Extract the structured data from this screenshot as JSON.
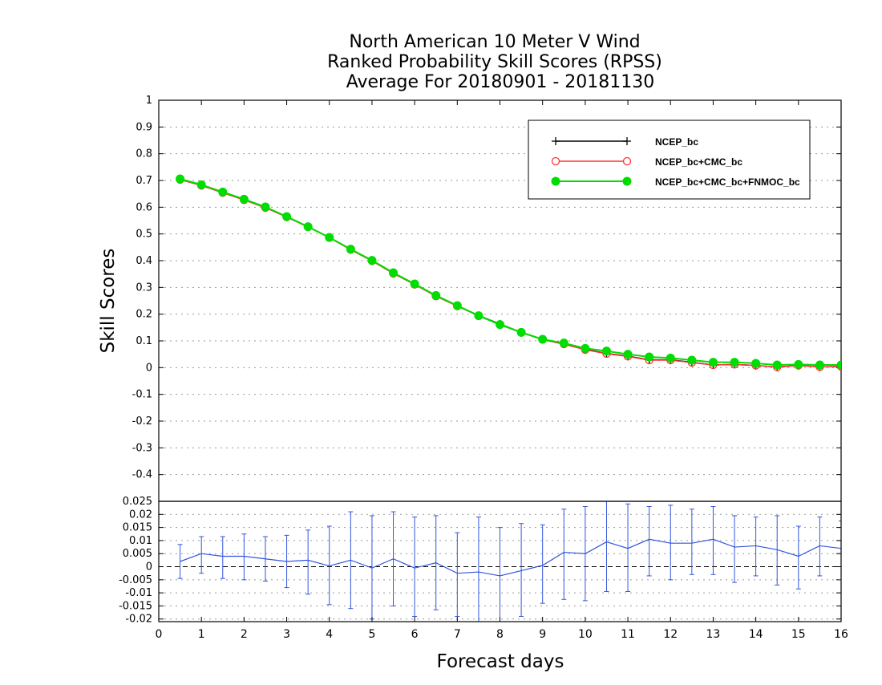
{
  "chart_data": [
    {
      "type": "line",
      "title": [
        "North American 10 Meter V Wind",
        "Ranked Probability Skill Scores (RPSS)",
        "Average For 20180901 - 20181130"
      ],
      "xlabel": "Forecast days",
      "ylabel": "Skill Scores",
      "xlim": [
        0,
        16
      ],
      "ylim": [
        -0.5,
        1.0
      ],
      "x_ticks": [
        "0",
        "1",
        "2",
        "3",
        "4",
        "5",
        "6",
        "7",
        "8",
        "9",
        "10",
        "11",
        "12",
        "13",
        "14",
        "15",
        "16"
      ],
      "y_ticks": [
        "-0.4",
        "-0.3",
        "-0.2",
        "-0.1",
        "0",
        "0.1",
        "0.2",
        "0.3",
        "0.4",
        "0.5",
        "0.6",
        "0.7",
        "0.8",
        "0.9",
        "1"
      ],
      "grid": true,
      "legend_position": "top-right",
      "x": [
        0.5,
        1,
        1.5,
        2,
        2.5,
        3,
        3.5,
        4,
        4.5,
        5,
        5.5,
        6,
        6.5,
        7,
        7.5,
        8,
        8.5,
        9,
        9.5,
        10,
        10.5,
        11,
        11.5,
        12,
        12.5,
        13,
        13.5,
        14,
        14.5,
        15,
        15.5,
        16
      ],
      "series": [
        {
          "name": "NCEP_bc",
          "color": "#000000",
          "marker": "plus",
          "values": [
            0.705,
            0.682,
            0.655,
            0.628,
            0.6,
            0.565,
            0.527,
            0.487,
            0.442,
            0.4,
            0.353,
            0.313,
            0.268,
            0.232,
            0.195,
            0.163,
            0.132,
            0.105,
            0.088,
            0.068,
            0.053,
            0.043,
            0.029,
            0.029,
            0.02,
            0.01,
            0.012,
            0.008,
            0.002,
            0.008,
            0.003,
            0.004
          ]
        },
        {
          "name": "NCEP_bc+CMC_bc",
          "color": "#ff3333",
          "marker": "open-circle",
          "values": [
            0.703,
            0.681,
            0.654,
            0.627,
            0.598,
            0.563,
            0.526,
            0.486,
            0.441,
            0.399,
            0.352,
            0.311,
            0.267,
            0.23,
            0.194,
            0.161,
            0.131,
            0.105,
            0.088,
            0.067,
            0.052,
            0.042,
            0.028,
            0.028,
            0.019,
            0.01,
            0.012,
            0.008,
            0.002,
            0.008,
            0.003,
            0.004
          ]
        },
        {
          "name": "NCEP_bc+CMC_bc+FNMOC_bc",
          "color": "#00dd00",
          "marker": "filled-circle",
          "values": [
            0.706,
            0.684,
            0.657,
            0.63,
            0.601,
            0.565,
            0.527,
            0.487,
            0.443,
            0.401,
            0.355,
            0.313,
            0.27,
            0.232,
            0.194,
            0.161,
            0.132,
            0.106,
            0.092,
            0.072,
            0.062,
            0.05,
            0.04,
            0.036,
            0.028,
            0.02,
            0.02,
            0.016,
            0.01,
            0.012,
            0.01,
            0.01
          ]
        }
      ]
    },
    {
      "type": "line",
      "xlim": [
        0,
        16
      ],
      "ylim": [
        -0.021,
        0.025
      ],
      "y_ticks": [
        "-0.02",
        "-0.015",
        "-0.01",
        "-0.005",
        "0",
        "0.005",
        "0.01",
        "0.015",
        "0.02",
        "0.025"
      ],
      "grid": true,
      "x": [
        0.5,
        1,
        1.5,
        2,
        2.5,
        3,
        3.5,
        4,
        4.5,
        5,
        5.5,
        6,
        6.5,
        7,
        7.5,
        8,
        8.5,
        9,
        9.5,
        10,
        10.5,
        11,
        11.5,
        12,
        12.5,
        13,
        13.5,
        14,
        14.5,
        15,
        15.5,
        16
      ],
      "series": [
        {
          "color": "#3355dd",
          "values": [
            0.002,
            0.005,
            0.004,
            0.004,
            0.003,
            0.002,
            0.0025,
            0.0003,
            0.0025,
            -0.0005,
            0.003,
            -0.0005,
            0.0015,
            -0.0025,
            -0.002,
            -0.0035,
            -0.0015,
            0.0005,
            0.0055,
            0.005,
            0.0095,
            0.007,
            0.0105,
            0.009,
            0.009,
            0.0105,
            0.0075,
            0.008,
            0.0065,
            0.004,
            0.008,
            0.007
          ],
          "error_low": [
            -0.0045,
            -0.0025,
            -0.0045,
            -0.005,
            -0.0055,
            -0.008,
            -0.0105,
            -0.0145,
            -0.016,
            -0.02,
            -0.015,
            -0.019,
            -0.0165,
            -0.019,
            -0.021,
            -0.021,
            -0.019,
            -0.014,
            -0.0125,
            -0.013,
            -0.0095,
            -0.0095,
            -0.0035,
            -0.005,
            -0.003,
            -0.003,
            -0.006,
            -0.0035,
            -0.007,
            -0.0085,
            -0.0035,
            -0.005
          ],
          "error_high": [
            0.0085,
            0.0115,
            0.0115,
            0.0125,
            0.0115,
            0.012,
            0.014,
            0.0155,
            0.021,
            0.0195,
            0.021,
            0.019,
            0.0195,
            0.013,
            0.019,
            0.015,
            0.0165,
            0.016,
            0.022,
            0.023,
            0.025,
            0.024,
            0.023,
            0.0235,
            0.022,
            0.023,
            0.0195,
            0.019,
            0.0195,
            0.0155,
            0.019,
            0.0175
          ]
        }
      ]
    }
  ]
}
